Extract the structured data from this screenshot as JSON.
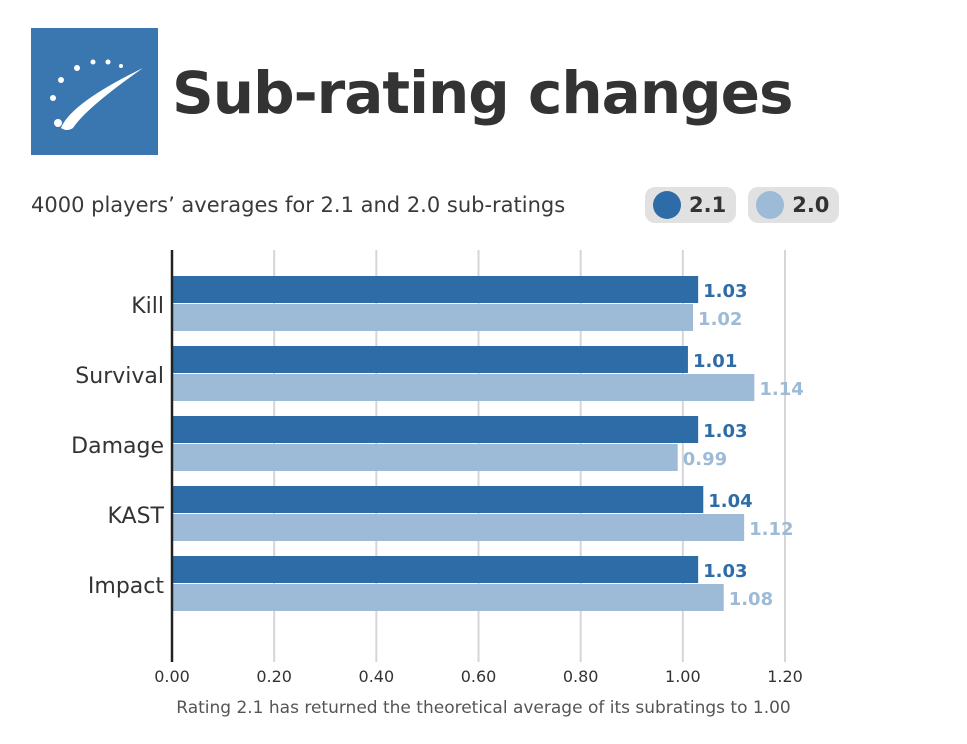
{
  "header": {
    "title": "Sub-rating changes",
    "subtitle": "4000 players’ averages for 2.1 and 2.0 sub-ratings",
    "logo_color": "#3a77b1"
  },
  "legend": [
    {
      "label": "2.1",
      "color": "#2e6ca7"
    },
    {
      "label": "2.0",
      "color": "#9dbad6"
    }
  ],
  "footnote": "Rating 2.1 has returned the theoretical average of its subratings to 1.00",
  "chart_data": {
    "type": "bar",
    "orientation": "horizontal",
    "categories": [
      "Kill",
      "Survival",
      "Damage",
      "KAST",
      "Impact"
    ],
    "series": [
      {
        "name": "2.1",
        "color": "#2e6ca7",
        "values": [
          1.03,
          1.01,
          1.03,
          1.04,
          1.03
        ],
        "labels": [
          "1.03",
          "1.01",
          "1.03",
          "1.04",
          "1.03"
        ]
      },
      {
        "name": "2.0",
        "color": "#9dbad6",
        "values": [
          1.02,
          1.14,
          0.99,
          1.12,
          1.08
        ],
        "labels": [
          "1.02",
          "1.14",
          "0.99",
          "1.12",
          "1.08"
        ]
      }
    ],
    "xlim": [
      0,
      1.2
    ],
    "xticks": [
      "0.00",
      "0.20",
      "0.40",
      "0.60",
      "0.80",
      "1.00",
      "1.20"
    ],
    "grid": true,
    "legend_position": "top-right"
  }
}
